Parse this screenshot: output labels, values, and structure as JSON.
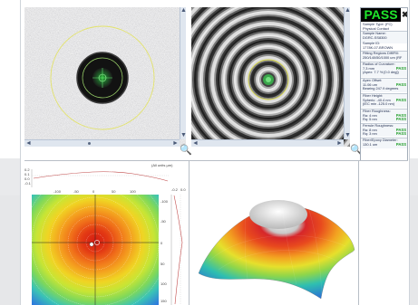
{
  "results": {
    "status": "PASS",
    "close_glyph": "✖",
    "sample_type": "Sample Type: (FC)",
    "physical_contact": "Physical Contact",
    "sample_name_label": "Sample Name:",
    "sample_name": "DGRC-SS8300",
    "sample_id_label": "Sample ID:",
    "sample_id": "1778K-07-BROWN",
    "fitting_label": "Fitting Regions Diff/Fill:",
    "fitting_value": "250/140/50/1000 um (RF",
    "roc_label": "Radius of Curvature:",
    "roc_value": "7.3 mm",
    "roc_pass": "PASS",
    "roc_ratio": "(Apex: 7.7 % [0.0 deg])",
    "apex_label": "Apex Offset:",
    "apex_value": "11.06 um",
    "apex_pass": "PASS",
    "bearing": "Bearing 247.9 degrees",
    "fh_label": "Fiber Height:",
    "fh_value": "Spheric: -40.4 nm",
    "fh_pass": "PASS",
    "fh_sub": "(IEC min -125.0 nm)",
    "fr_label": "Fiber Roughness:",
    "fr_ra": "Ra:      4 nm",
    "fr_ra_pass": "PASS",
    "fr_rq": "Rq:      5 nm",
    "fr_rq_pass": "PASS",
    "ferr_label": "Ferrule Roughness:",
    "ferr_ra": "Ra:      8 nm",
    "ferr_ra_pass": "PASS",
    "ferr_rq": "Rq:      3 nm",
    "ferr_rq_pass": "PASS",
    "fed_label": "Fiber/Epoxy Diameter:",
    "fed_value": "130.1 um",
    "fed_pass": "PASS"
  },
  "map": {
    "units_caption": "(All units µm)",
    "top_ticks": [
      "0.2",
      "0.1",
      "0.0",
      "-0.1"
    ],
    "x_ticks": [
      "-100",
      "-50",
      "0",
      "50",
      "100"
    ],
    "y_ticks": [
      "-100",
      "-50",
      "0",
      "50",
      "100",
      "150"
    ],
    "side_ticks": [
      "-0.2",
      "0.0"
    ]
  },
  "icons": {
    "zoom": "🔍",
    "arrow_up": "▲",
    "arrow_down": "▼",
    "arrow_left": "◄",
    "arrow_right": "►"
  }
}
